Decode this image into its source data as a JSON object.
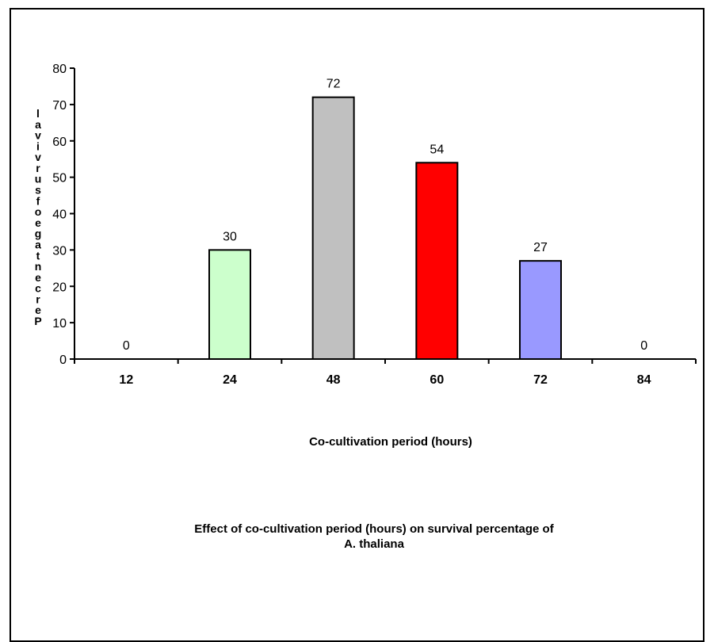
{
  "chart_data": {
    "type": "bar",
    "categories": [
      "12",
      "24",
      "48",
      "60",
      "72",
      "84"
    ],
    "values": [
      0,
      30,
      72,
      54,
      27,
      0
    ],
    "bar_colors": [
      "#ffffff",
      "#ccffcc",
      "#c0c0c0",
      "#ff0000",
      "#9999ff",
      "#ffffff"
    ],
    "ylim": [
      0,
      80
    ],
    "yticks": [
      0,
      10,
      20,
      30,
      40,
      50,
      60,
      70,
      80
    ],
    "xlabel": "Co-cultivation period (hours)",
    "ylabel": "Percentage of survival",
    "caption_lines": [
      "Effect of co-cultivation period (hours) on survival percentage of",
      "A. thaliana"
    ],
    "grid": false,
    "legend": "none"
  }
}
